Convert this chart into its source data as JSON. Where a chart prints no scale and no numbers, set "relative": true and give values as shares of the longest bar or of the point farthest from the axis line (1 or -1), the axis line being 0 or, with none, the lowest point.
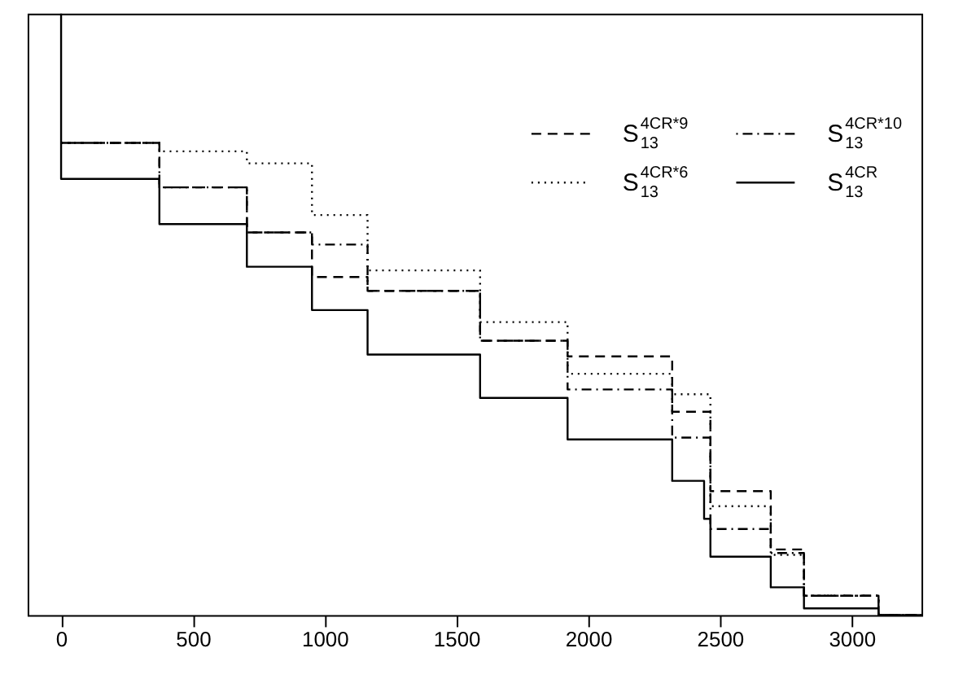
{
  "chart_data": {
    "type": "step",
    "relative": true,
    "xlim": [
      -127,
      3265
    ],
    "xticks": [
      0,
      500,
      1000,
      1500,
      2000,
      2500,
      3000
    ],
    "grid": false,
    "legend": "top right",
    "series": [
      {
        "name": "S$_{13}$$^{4CR*9}$",
        "color": "#000000",
        "line_style": "dashed",
        "x": [
          0,
          373,
          705,
          952,
          1163,
          1590,
          1922,
          2319,
          2464,
          2693,
          2819,
          3102,
          3265
        ],
        "values": [
          0.785,
          0.711,
          0.636,
          0.562,
          0.539,
          0.456,
          0.43,
          0.338,
          0.206,
          0.109,
          0.032,
          0,
          0
        ]
      },
      {
        "name": "S$_{13}$$^{4CR*10}$",
        "color": "#000000",
        "line_style": "dashdot",
        "x": [
          0,
          373,
          705,
          952,
          1163,
          1590,
          1922,
          2319,
          2464,
          2693,
          2819,
          3102,
          3265
        ],
        "values": [
          0.785,
          0.711,
          0.636,
          0.616,
          0.539,
          0.456,
          0.375,
          0.295,
          0.143,
          0.103,
          0.032,
          0,
          0
        ]
      },
      {
        "name": "S$_{13}$$^{4CR*6}$",
        "color": "#000000",
        "line_style": "dotted",
        "x": [
          0,
          373,
          705,
          952,
          1163,
          1590,
          1922,
          2319,
          2464,
          2693,
          2819,
          3102,
          3265
        ],
        "values": [
          0.785,
          0.771,
          0.751,
          0.665,
          0.573,
          0.487,
          0.401,
          0.367,
          0.181,
          0.1,
          0.032,
          0,
          0
        ]
      },
      {
        "name": "S$_{13}$$^{4CR}$",
        "color": "#000000",
        "line_style": "solid",
        "x": [
          0,
          0,
          373,
          705,
          952,
          1163,
          1590,
          1922,
          2319,
          2440,
          2464,
          2693,
          2819,
          3102,
          3265
        ],
        "values": [
          1,
          0.725,
          0.65,
          0.579,
          0.507,
          0.433,
          0.361,
          0.292,
          0.223,
          0.16,
          0.097,
          0.046,
          0.011,
          0,
          0
        ]
      }
    ]
  }
}
